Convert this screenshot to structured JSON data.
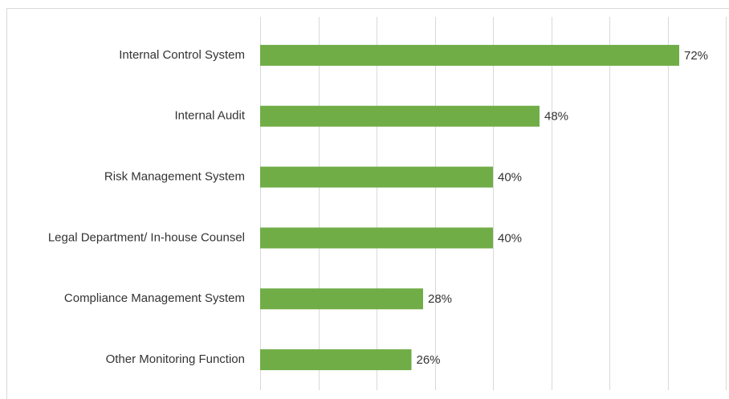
{
  "chart_data": {
    "type": "bar",
    "orientation": "horizontal",
    "categories": [
      "Internal Control System",
      "Internal Audit",
      "Risk Management System",
      "Legal Department/ In-house Counsel",
      "Compliance Management System",
      "Other Monitoring Function"
    ],
    "values": [
      72,
      48,
      40,
      40,
      28,
      26
    ],
    "value_labels": [
      "72%",
      "48%",
      "40%",
      "40%",
      "28%",
      "26%"
    ],
    "color": "#70ad47",
    "xlim": [
      0,
      80
    ],
    "xticks": [
      0,
      10,
      20,
      30,
      40,
      50,
      60,
      70,
      80
    ],
    "grid": true
  }
}
